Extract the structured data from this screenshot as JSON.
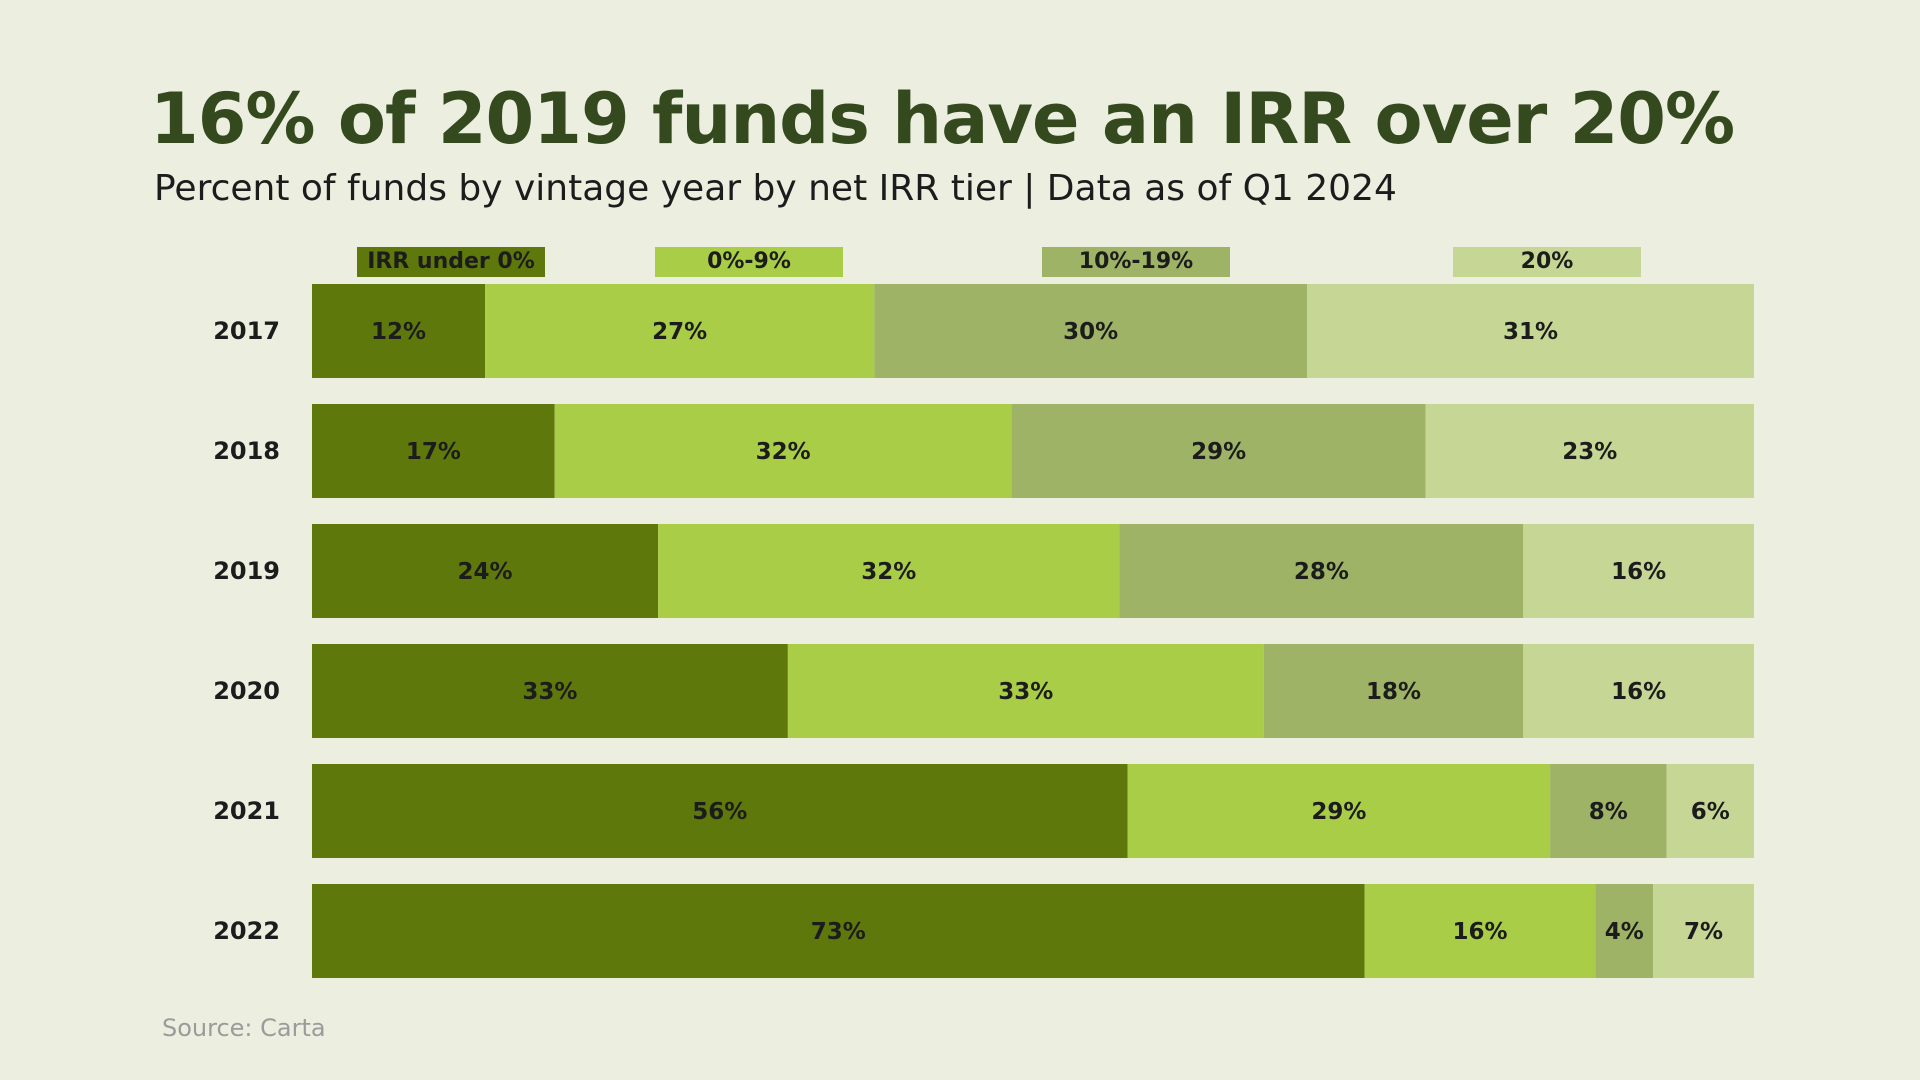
{
  "header": {
    "title": "16% of 2019 funds have an IRR over 20%",
    "subtitle": "Percent of funds by vintage year by net IRR tier | Data as of Q1 2024"
  },
  "footer": {
    "source": "Source: Carta"
  },
  "colors": {
    "background": "#ecefe0",
    "title": "#344a1e",
    "series": [
      "#5f780b",
      "#aacd47",
      "#9eb366",
      "#c6d795"
    ]
  },
  "chart_data": {
    "type": "bar",
    "orientation": "horizontal",
    "stacked": true,
    "title": "16% of 2019 funds have an IRR over 20%",
    "subtitle": "Percent of funds by vintage year by net IRR tier | Data as of Q1 2024",
    "categories": [
      "2017",
      "2018",
      "2019",
      "2020",
      "2021",
      "2022"
    ],
    "series": [
      {
        "name": "IRR under 0%",
        "color": "#5f780b",
        "values": [
          12,
          17,
          24,
          33,
          56,
          73
        ]
      },
      {
        "name": "0%-9%",
        "color": "#aacd47",
        "values": [
          27,
          32,
          32,
          33,
          29,
          16
        ]
      },
      {
        "name": "10%-19%",
        "color": "#9eb366",
        "values": [
          30,
          29,
          28,
          18,
          8,
          4
        ]
      },
      {
        "name": "20%",
        "color": "#c6d795",
        "values": [
          31,
          23,
          16,
          16,
          6,
          7
        ]
      }
    ],
    "data_labels": true,
    "legend_position": "top",
    "grid": false,
    "source": "Source: Carta"
  }
}
